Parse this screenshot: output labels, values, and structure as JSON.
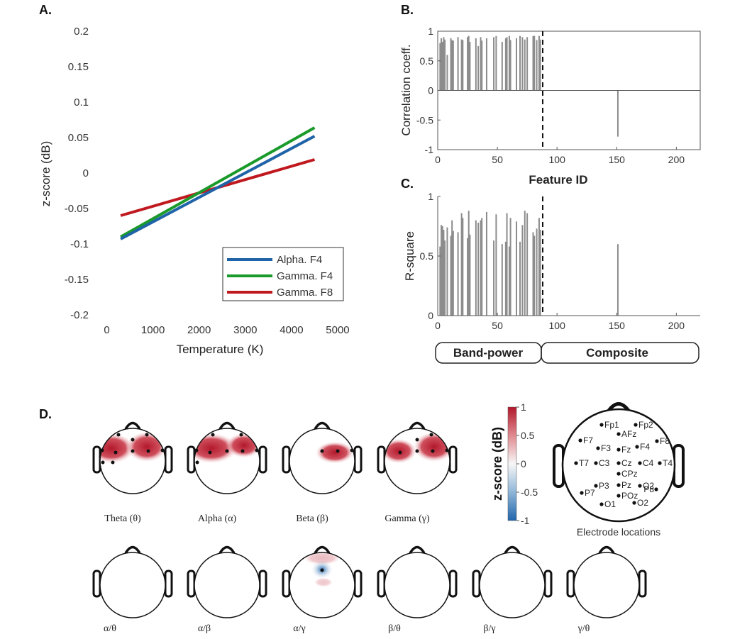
{
  "colors": {
    "alpha": "#1f63a8",
    "gamma_f4": "#1a9a2a",
    "gamma_f8": "#c0181f",
    "bars": "#8c8c8c",
    "heat_pos": "#b2182b",
    "heat_neg": "#2166ac"
  },
  "panel_labels": {
    "a": "A.",
    "b": "B.",
    "c": "C.",
    "d": "D."
  },
  "chart_data": [
    {
      "id": "A",
      "type": "line",
      "xlabel": "Temperature (K)",
      "ylabel": "z-score (dB)",
      "xlim": [
        -300,
        5400
      ],
      "ylim": [
        -0.2,
        0.2
      ],
      "xticks": [
        "0",
        "1000",
        "2000",
        "3000",
        "4000",
        "5000"
      ],
      "yticks": [
        "0.2",
        "0.15",
        "0.1",
        "0.05",
        "0",
        "-0.05",
        "-0.1",
        "-0.15",
        "-0.2"
      ],
      "legend_position": "bottom-right",
      "series": [
        {
          "name": "Alpha. F4",
          "x": [
            300,
            4500
          ],
          "y": [
            -0.093,
            0.052
          ]
        },
        {
          "name": "Gamma. F4",
          "x": [
            300,
            4500
          ],
          "y": [
            -0.09,
            0.064
          ]
        },
        {
          "name": "Gamma. F8",
          "x": [
            300,
            4500
          ],
          "y": [
            -0.06,
            0.019
          ]
        }
      ]
    },
    {
      "id": "B",
      "type": "bar",
      "ylabel": "Correlation coeff.",
      "xlabel": "Feature ID",
      "xlim": [
        0,
        220
      ],
      "ylim": [
        -1,
        1
      ],
      "xticks": [
        "0",
        "50",
        "100",
        "150",
        "200"
      ],
      "yticks": [
        "1",
        "0.5",
        "0",
        "-0.5",
        "-1"
      ],
      "divider_x": 88,
      "x": [
        2,
        3,
        4,
        5,
        6,
        8,
        11,
        12,
        13,
        17,
        20,
        21,
        25,
        26,
        27,
        32,
        34,
        36,
        37,
        41,
        47,
        49,
        54,
        57,
        58,
        60,
        61,
        66,
        69,
        71,
        73,
        75,
        80,
        81,
        83,
        85,
        86,
        151
      ],
      "values": [
        0.8,
        0.88,
        0.82,
        0.9,
        0.86,
        0.6,
        0.88,
        0.85,
        0.84,
        0.9,
        0.86,
        0.85,
        0.9,
        0.92,
        0.82,
        0.88,
        0.75,
        0.9,
        0.84,
        0.88,
        0.9,
        0.92,
        0.82,
        0.88,
        0.9,
        0.92,
        0.85,
        0.88,
        0.92,
        0.9,
        0.86,
        0.9,
        0.92,
        0.92,
        0.85,
        0.92,
        0.86,
        -0.78
      ]
    },
    {
      "id": "C",
      "type": "bar",
      "ylabel": "R-square",
      "xlim": [
        0,
        220
      ],
      "ylim": [
        0,
        1
      ],
      "xticks": [
        "0",
        "50",
        "100",
        "150",
        "200"
      ],
      "yticks": [
        "1",
        "0.5",
        "0"
      ],
      "divider_x": 88,
      "x": [
        2,
        3,
        4,
        5,
        6,
        8,
        11,
        12,
        13,
        17,
        20,
        21,
        25,
        26,
        27,
        32,
        34,
        36,
        37,
        41,
        47,
        49,
        54,
        57,
        58,
        60,
        61,
        66,
        69,
        71,
        73,
        75,
        80,
        81,
        83,
        85,
        86,
        151
      ],
      "values": [
        0.58,
        0.76,
        0.75,
        0.72,
        0.63,
        0.74,
        0.67,
        0.8,
        0.71,
        0.7,
        0.86,
        0.82,
        0.65,
        0.88,
        0.68,
        0.8,
        0.78,
        0.8,
        0.82,
        0.87,
        0.63,
        0.85,
        0.6,
        0.62,
        0.86,
        0.58,
        0.82,
        0.79,
        0.62,
        0.76,
        0.88,
        0.86,
        0.7,
        0.67,
        0.73,
        0.82,
        0.72,
        0.6
      ]
    }
  ],
  "panel_c_groups": [
    "Band-power",
    "Composite"
  ],
  "colorbar": {
    "label": "z-score (dB)",
    "ticks": [
      "1",
      "0.5",
      "0",
      "-0.5",
      "-1"
    ]
  },
  "topomaps_row1": [
    {
      "label": "Theta (θ)",
      "electrodes": [
        "F7",
        "F3",
        "Fz",
        "F4",
        "Fp2",
        "AFz",
        "T7",
        "C3",
        "Fp1",
        "F8"
      ]
    },
    {
      "label": "Alpha (α)",
      "electrodes": [
        "F7",
        "F3",
        "Fz",
        "F4",
        "F8",
        "Fp1",
        "Fp2",
        "T7"
      ]
    },
    {
      "label": "Beta (β)",
      "electrodes": [
        "Fz",
        "F4",
        "F8"
      ]
    },
    {
      "label": "Gamma (γ)",
      "electrodes": [
        "F3",
        "F4",
        "Fz",
        "Fp2",
        "F8",
        "AFz"
      ]
    }
  ],
  "topomaps_row2": [
    {
      "label": "α/θ"
    },
    {
      "label": "α/β"
    },
    {
      "label": "α/γ"
    },
    {
      "label": "β/θ"
    },
    {
      "label": "β/γ"
    },
    {
      "label": "γ/θ"
    }
  ],
  "electrode_map": {
    "title": "Electrode locations",
    "labels": [
      "Fp1",
      "Fp2",
      "AFz",
      "F7",
      "F3",
      "Fz",
      "F4",
      "F8",
      "T7",
      "C3",
      "Cz",
      "C4",
      "T4",
      "CPz",
      "P3",
      "Pz",
      "O2",
      "P7",
      "POz",
      "P8",
      "O1",
      "O2"
    ]
  }
}
